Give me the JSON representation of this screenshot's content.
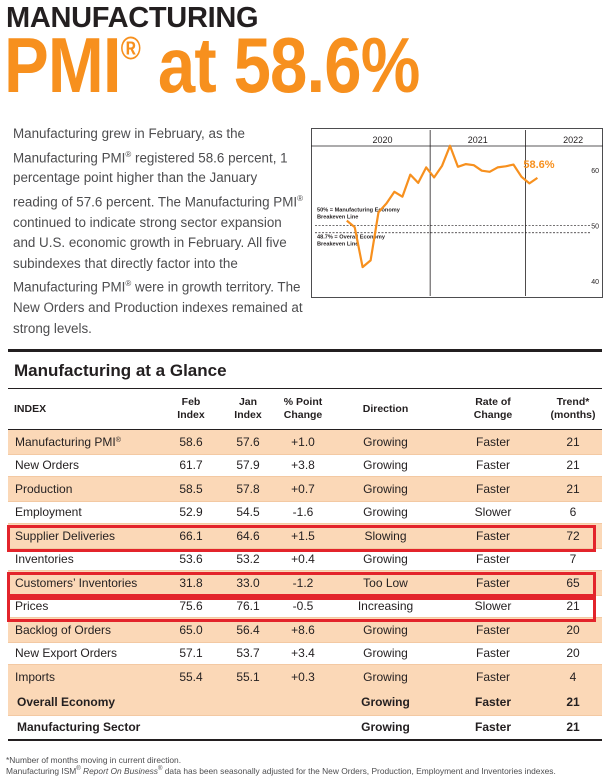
{
  "header": {
    "kicker": "MANUFACTURING",
    "headline_pmi": "PMI",
    "headline_reg": "®",
    "headline_rest": " at 58.6%"
  },
  "intro": {
    "p1": "Manufacturing grew in February, as the Manufacturing PMI",
    "reg": "®",
    "p2": " registered 58.6 percent, 1 percentage point higher than the January reading of 57.6 percent. The Manufacturing PMI",
    "p3": " continued to indicate strong sector expansion and U.S. economic growth in February. All five subindexes that directly factor into the Manufacturing PMI",
    "p4": " were in growth territory. The New Orders and Production indexes remained at strong levels."
  },
  "chart_data": {
    "type": "line",
    "x_years": [
      "2020",
      "2021",
      "2022"
    ],
    "y_ticks": [
      "60",
      "50",
      "40"
    ],
    "ylim": [
      38,
      64
    ],
    "annotation_value": "58.6%",
    "reference_lines": [
      {
        "value": 50,
        "label_line1": "50% = Manufacturing Economy",
        "label_line2": "Breakeven Line"
      },
      {
        "value": 48.7,
        "label_line1": "48.7% = Overall Economy",
        "label_line2": "Breakeven Line"
      }
    ],
    "series": [
      {
        "x": [
          "2020-02",
          "2020-03",
          "2020-04",
          "2020-05",
          "2020-06",
          "2020-07",
          "2020-08",
          "2020-09",
          "2020-10",
          "2020-11",
          "2020-12",
          "2021-01",
          "2021-02",
          "2021-03",
          "2021-04",
          "2021-05",
          "2021-06",
          "2021-07",
          "2021-08",
          "2021-09",
          "2021-10",
          "2021-11",
          "2021-12",
          "2022-01",
          "2022-02"
        ],
        "values": [
          50.9,
          49.7,
          42.5,
          43.7,
          52.4,
          54.0,
          56.1,
          55.2,
          59.2,
          57.7,
          60.5,
          58.7,
          60.8,
          64.4,
          60.6,
          61.1,
          60.9,
          59.9,
          59.7,
          60.5,
          60.7,
          61.0,
          58.8,
          57.6,
          58.6
        ]
      }
    ]
  },
  "table": {
    "title": "Manufacturing at a Glance",
    "headers": {
      "index": "INDEX",
      "feb": [
        "Feb",
        "Index"
      ],
      "jan": [
        "Jan",
        "Index"
      ],
      "change": [
        "% Point",
        "Change"
      ],
      "direction": "Direction",
      "rate": [
        "Rate of",
        "Change"
      ],
      "trend": [
        "Trend*",
        "(months)"
      ]
    },
    "rows": [
      {
        "name": "Manufacturing PMI",
        "reg": "®",
        "feb": "58.6",
        "jan": "57.6",
        "change": "+1.0",
        "direction": "Growing",
        "rate": "Faster",
        "trend": "21"
      },
      {
        "name": "New Orders",
        "reg": "",
        "feb": "61.7",
        "jan": "57.9",
        "change": "+3.8",
        "direction": "Growing",
        "rate": "Faster",
        "trend": "21"
      },
      {
        "name": "Production",
        "reg": "",
        "feb": "58.5",
        "jan": "57.8",
        "change": "+0.7",
        "direction": "Growing",
        "rate": "Faster",
        "trend": "21"
      },
      {
        "name": "Employment",
        "reg": "",
        "feb": "52.9",
        "jan": "54.5",
        "change": "-1.6",
        "direction": "Growing",
        "rate": "Slower",
        "trend": "6"
      },
      {
        "name": "Supplier Deliveries",
        "reg": "",
        "feb": "66.1",
        "jan": "64.6",
        "change": "+1.5",
        "direction": "Slowing",
        "rate": "Faster",
        "trend": "72"
      },
      {
        "name": "Inventories",
        "reg": "",
        "feb": "53.6",
        "jan": "53.2",
        "change": "+0.4",
        "direction": "Growing",
        "rate": "Faster",
        "trend": "7"
      },
      {
        "name": "Customers’ Inventories",
        "reg": "",
        "feb": "31.8",
        "jan": "33.0",
        "change": "-1.2",
        "direction": "Too Low",
        "rate": "Faster",
        "trend": "65"
      },
      {
        "name": "Prices",
        "reg": "",
        "feb": "75.6",
        "jan": "76.1",
        "change": "-0.5",
        "direction": "Increasing",
        "rate": "Slower",
        "trend": "21"
      },
      {
        "name": "Backlog of Orders",
        "reg": "",
        "feb": "65.0",
        "jan": "56.4",
        "change": "+8.6",
        "direction": "Growing",
        "rate": "Faster",
        "trend": "20"
      },
      {
        "name": "New Export Orders",
        "reg": "",
        "feb": "57.1",
        "jan": "53.7",
        "change": "+3.4",
        "direction": "Growing",
        "rate": "Faster",
        "trend": "20"
      },
      {
        "name": "Imports",
        "reg": "",
        "feb": "55.4",
        "jan": "55.1",
        "change": "+0.3",
        "direction": "Growing",
        "rate": "Faster",
        "trend": "4"
      }
    ],
    "summary_rows": [
      {
        "name": "Overall Economy",
        "direction": "Growing",
        "rate": "Faster",
        "trend": "21"
      },
      {
        "name": "Manufacturing Sector",
        "direction": "Growing",
        "rate": "Faster",
        "trend": "21"
      }
    ]
  },
  "footnotes": {
    "note1": "*Number of months moving in current direction.",
    "note2_a": "Manufacturing ISM",
    "note2_reg": "®",
    "note2_b": " ",
    "note2_italic": "Report On Business",
    "note2_reg2": "®",
    "note2_c": " data has been seasonally adjusted for the New Orders, Production, Employment and Inventories indexes."
  },
  "colors": {
    "accent_orange": "#f7901e",
    "row_shade": "#fbd8b7",
    "highlight_red": "#e3242b",
    "text_dark": "#231f20"
  }
}
